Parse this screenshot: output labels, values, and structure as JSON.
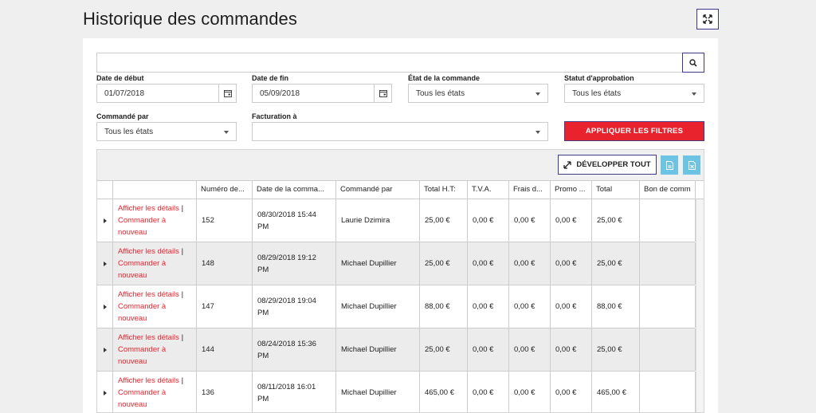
{
  "page": {
    "title": "Historique des commandes"
  },
  "search": {
    "value": "",
    "placeholder": ""
  },
  "filters": {
    "start_date": {
      "label": "Date de début",
      "value": "01/07/2018"
    },
    "end_date": {
      "label": "Date de fin",
      "value": "05/09/2018"
    },
    "order_state": {
      "label": "État de la commande",
      "value": "Tous les états"
    },
    "approval_status": {
      "label": "Statut d'approbation",
      "value": "Tous les états"
    },
    "ordered_by": {
      "label": "Commandé par",
      "value": "Tous les états"
    },
    "billing_to": {
      "label": "Facturation à",
      "value": ""
    },
    "apply_label": "APPLIQUER LES FILTRES"
  },
  "toolbar": {
    "develop_label": "DÉVELOPPER TOUT"
  },
  "table": {
    "columns": [
      "",
      "",
      "Numéro de...",
      "Date de la comma...",
      "Commandé par",
      "Total H.T:",
      "T.V.A.",
      "Frais d...",
      "Promo ...",
      "Total",
      "Bon de comm"
    ],
    "action_details": "Afficher les détails",
    "action_separator": "|",
    "action_reorder_1": "Commander à",
    "action_reorder_2": "nouveau",
    "rows": [
      {
        "number": "152",
        "date": "08/30/2018 15:44",
        "time_suffix": "PM",
        "ordered_by": "Laurie Dzimira",
        "total_ht": "25,00 €",
        "tva": "0,00 €",
        "frais": "0,00 €",
        "promo": "0,00 €",
        "total": "25,00 €",
        "bon": ""
      },
      {
        "number": "148",
        "date": "08/29/2018 19:12",
        "time_suffix": "PM",
        "ordered_by": "Michael Dupillier",
        "total_ht": "25,00 €",
        "tva": "0,00 €",
        "frais": "0,00 €",
        "promo": "0,00 €",
        "total": "25,00 €",
        "bon": ""
      },
      {
        "number": "147",
        "date": "08/29/2018 19:04",
        "time_suffix": "PM",
        "ordered_by": "Michael Dupillier",
        "total_ht": "88,00 €",
        "tva": "0,00 €",
        "frais": "0,00 €",
        "promo": "0,00 €",
        "total": "88,00 €",
        "bon": ""
      },
      {
        "number": "144",
        "date": "08/24/2018 15:36",
        "time_suffix": "PM",
        "ordered_by": "Michael Dupillier",
        "total_ht": "25,00 €",
        "tva": "0,00 €",
        "frais": "0,00 €",
        "promo": "0,00 €",
        "total": "25,00 €",
        "bon": ""
      },
      {
        "number": "136",
        "date": "08/11/2018 16:01",
        "time_suffix": "PM",
        "ordered_by": "Michael Dupillier",
        "total_ht": "465,00 €",
        "tva": "0,00 €",
        "frais": "0,00 €",
        "promo": "0,00 €",
        "total": "465,00 €",
        "bon": ""
      }
    ]
  },
  "colors": {
    "accent_red": "#e8232d",
    "border_purple": "#3d3a8c",
    "export_blue": "#6cc3e3",
    "row_alt": "#ececec"
  },
  "icons": [
    "expand-icon",
    "search-icon",
    "calendar-icon",
    "chevron-down-icon",
    "expand-arrows-icon",
    "export-pdf-icon",
    "export-excel-icon",
    "caret-right-icon"
  ]
}
